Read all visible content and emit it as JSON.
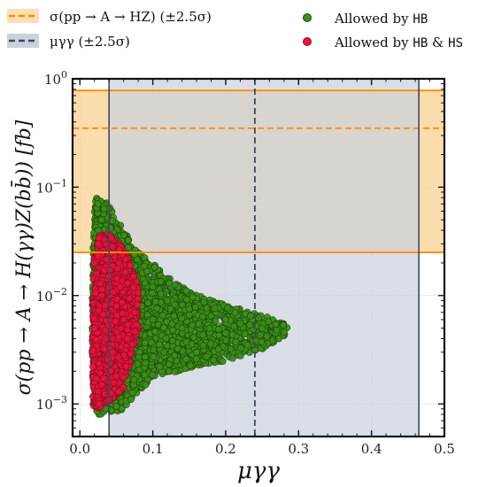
{
  "chart_data": {
    "type": "scatter",
    "title": "",
    "xlabel": "μγγ",
    "ylabel": "σ(pp → A → H(γγ)Z(bb̄)) [fb]",
    "xlim": [
      -0.01,
      0.5
    ],
    "ylim": [
      0.0005,
      1.0
    ],
    "yscale": "log",
    "grid": true,
    "legend_position": "top",
    "x_ticks": [
      "0.0",
      "0.1",
      "0.2",
      "0.3",
      "0.4",
      "0.5"
    ],
    "y_ticks": [
      {
        "value": 0.001,
        "label": "10",
        "exp": "−3"
      },
      {
        "value": 0.01,
        "label": "10",
        "exp": "−2"
      },
      {
        "value": 0.1,
        "label": "10",
        "exp": "−1"
      },
      {
        "value": 1.0,
        "label": "10",
        "exp": "0"
      }
    ],
    "bands": {
      "sigma": {
        "name": "σ(pp → A → HZ) (±2.5σ)",
        "center": 0.35,
        "low": 0.025,
        "high": 0.78,
        "color": "#ff8c00",
        "fill": "#fbd9a4"
      },
      "mu": {
        "name": "μγγ (±2.5σ)",
        "center": 0.24,
        "low": 0.04,
        "high": 0.465,
        "color": "#3d4a60",
        "fill": "#ccd2dc"
      }
    },
    "series": [
      {
        "name": "Allowed by HB",
        "color": "#3d8f1a",
        "edge": "#1e4d0a",
        "envelope": [
          [
            0.018,
            0.0009
          ],
          [
            0.017,
            0.003
          ],
          [
            0.017,
            0.01
          ],
          [
            0.018,
            0.03
          ],
          [
            0.02,
            0.06
          ],
          [
            0.022,
            0.08
          ],
          [
            0.04,
            0.07
          ],
          [
            0.06,
            0.04
          ],
          [
            0.08,
            0.025
          ],
          [
            0.1,
            0.02
          ],
          [
            0.13,
            0.013
          ],
          [
            0.17,
            0.0095
          ],
          [
            0.22,
            0.0075
          ],
          [
            0.27,
            0.006
          ],
          [
            0.285,
            0.0052
          ],
          [
            0.28,
            0.0042
          ],
          [
            0.25,
            0.0032
          ],
          [
            0.2,
            0.0025
          ],
          [
            0.15,
            0.0021
          ],
          [
            0.1,
            0.0018
          ],
          [
            0.08,
            0.0013
          ],
          [
            0.06,
            0.0009
          ],
          [
            0.04,
            0.0008
          ],
          [
            0.025,
            0.0008
          ]
        ],
        "samples": [
          [
            0.025,
            0.07
          ],
          [
            0.03,
            0.05
          ],
          [
            0.05,
            0.03
          ],
          [
            0.07,
            0.02
          ],
          [
            0.1,
            0.012
          ],
          [
            0.12,
            0.009
          ],
          [
            0.15,
            0.0075
          ],
          [
            0.18,
            0.0065
          ],
          [
            0.2,
            0.006
          ],
          [
            0.22,
            0.0055
          ],
          [
            0.25,
            0.005
          ],
          [
            0.27,
            0.0048
          ],
          [
            0.28,
            0.0046
          ],
          [
            0.23,
            0.0035
          ],
          [
            0.19,
            0.0032
          ],
          [
            0.16,
            0.003
          ],
          [
            0.13,
            0.0028
          ],
          [
            0.11,
            0.0022
          ],
          [
            0.09,
            0.0015
          ],
          [
            0.07,
            0.0011
          ],
          [
            0.05,
            0.00095
          ],
          [
            0.035,
            0.0009
          ],
          [
            0.2,
            0.0045
          ],
          [
            0.14,
            0.005
          ],
          [
            0.1,
            0.006
          ],
          [
            0.085,
            0.008
          ]
        ]
      },
      {
        "name": "Allowed by HB & HS",
        "color": "#e8143c",
        "edge": "#8a1025",
        "envelope": [
          [
            0.018,
            0.0009
          ],
          [
            0.017,
            0.003
          ],
          [
            0.018,
            0.01
          ],
          [
            0.02,
            0.025
          ],
          [
            0.028,
            0.038
          ],
          [
            0.04,
            0.037
          ],
          [
            0.055,
            0.03
          ],
          [
            0.07,
            0.02
          ],
          [
            0.08,
            0.012
          ],
          [
            0.08,
            0.005
          ],
          [
            0.07,
            0.0025
          ],
          [
            0.06,
            0.0014
          ],
          [
            0.045,
            0.0011
          ],
          [
            0.03,
            0.00095
          ],
          [
            0.022,
            0.0009
          ]
        ],
        "samples": [
          [
            0.02,
            0.02
          ],
          [
            0.025,
            0.03
          ],
          [
            0.03,
            0.01
          ],
          [
            0.04,
            0.015
          ],
          [
            0.05,
            0.008
          ],
          [
            0.06,
            0.006
          ],
          [
            0.035,
            0.004
          ],
          [
            0.045,
            0.003
          ],
          [
            0.065,
            0.004
          ],
          [
            0.075,
            0.007
          ],
          [
            0.03,
            0.0015
          ],
          [
            0.05,
            0.0018
          ],
          [
            0.02,
            0.005
          ],
          [
            0.04,
            0.025
          ],
          [
            0.055,
            0.012
          ]
        ]
      }
    ]
  },
  "legend": {
    "sigma_label_prefix": "σ(pp → A → HZ) (±2.5σ)",
    "mu_label": "μγγ (±2.5σ)",
    "hb_label_prefix": "Allowed by ",
    "hb_code": "HB",
    "hbhs_label_prefix": "Allowed by ",
    "hbhs_code1": "HB",
    "hbhs_amp": " & ",
    "hbhs_code2": "HS"
  }
}
